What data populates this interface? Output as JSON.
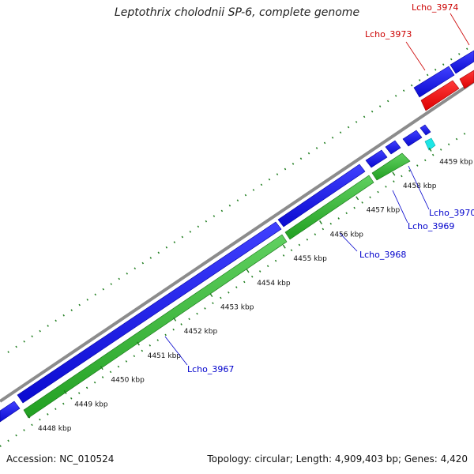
{
  "title": "Leptothrix cholodnii SP-6, complete genome",
  "footer": {
    "accession": "Accession: NC_010524",
    "topology": "Topology: circular; Length: 4,909,403 bp; Genes: 4,420"
  },
  "ruler_ticks": [
    "4448 kbp",
    "4449 kbp",
    "4450 kbp",
    "4451 kbp",
    "4452 kbp",
    "4453 kbp",
    "4454 kbp",
    "4455 kbp",
    "4456 kbp",
    "4457 kbp",
    "4458 kbp",
    "4459 kbp"
  ],
  "gene_labels": {
    "lcho_3967": "Lcho_3967",
    "lcho_3968": "Lcho_3968",
    "lcho_3969": "Lcho_3969",
    "lcho_3970": "Lcho_3970",
    "lcho_3973": "Lcho_3973",
    "lcho_3974": "Lcho_3974"
  },
  "colors": {
    "backbone": "#8c8c8c",
    "cds_forward": "#1212e6",
    "cds_reverse_outer": "#ee0a0a",
    "cds_reverse_inner": "#2fb92f",
    "other_feature": "#1ee6e6",
    "tick": "#1e7d1e",
    "label_blue": "#0000cc",
    "label_red": "#cc0000"
  }
}
